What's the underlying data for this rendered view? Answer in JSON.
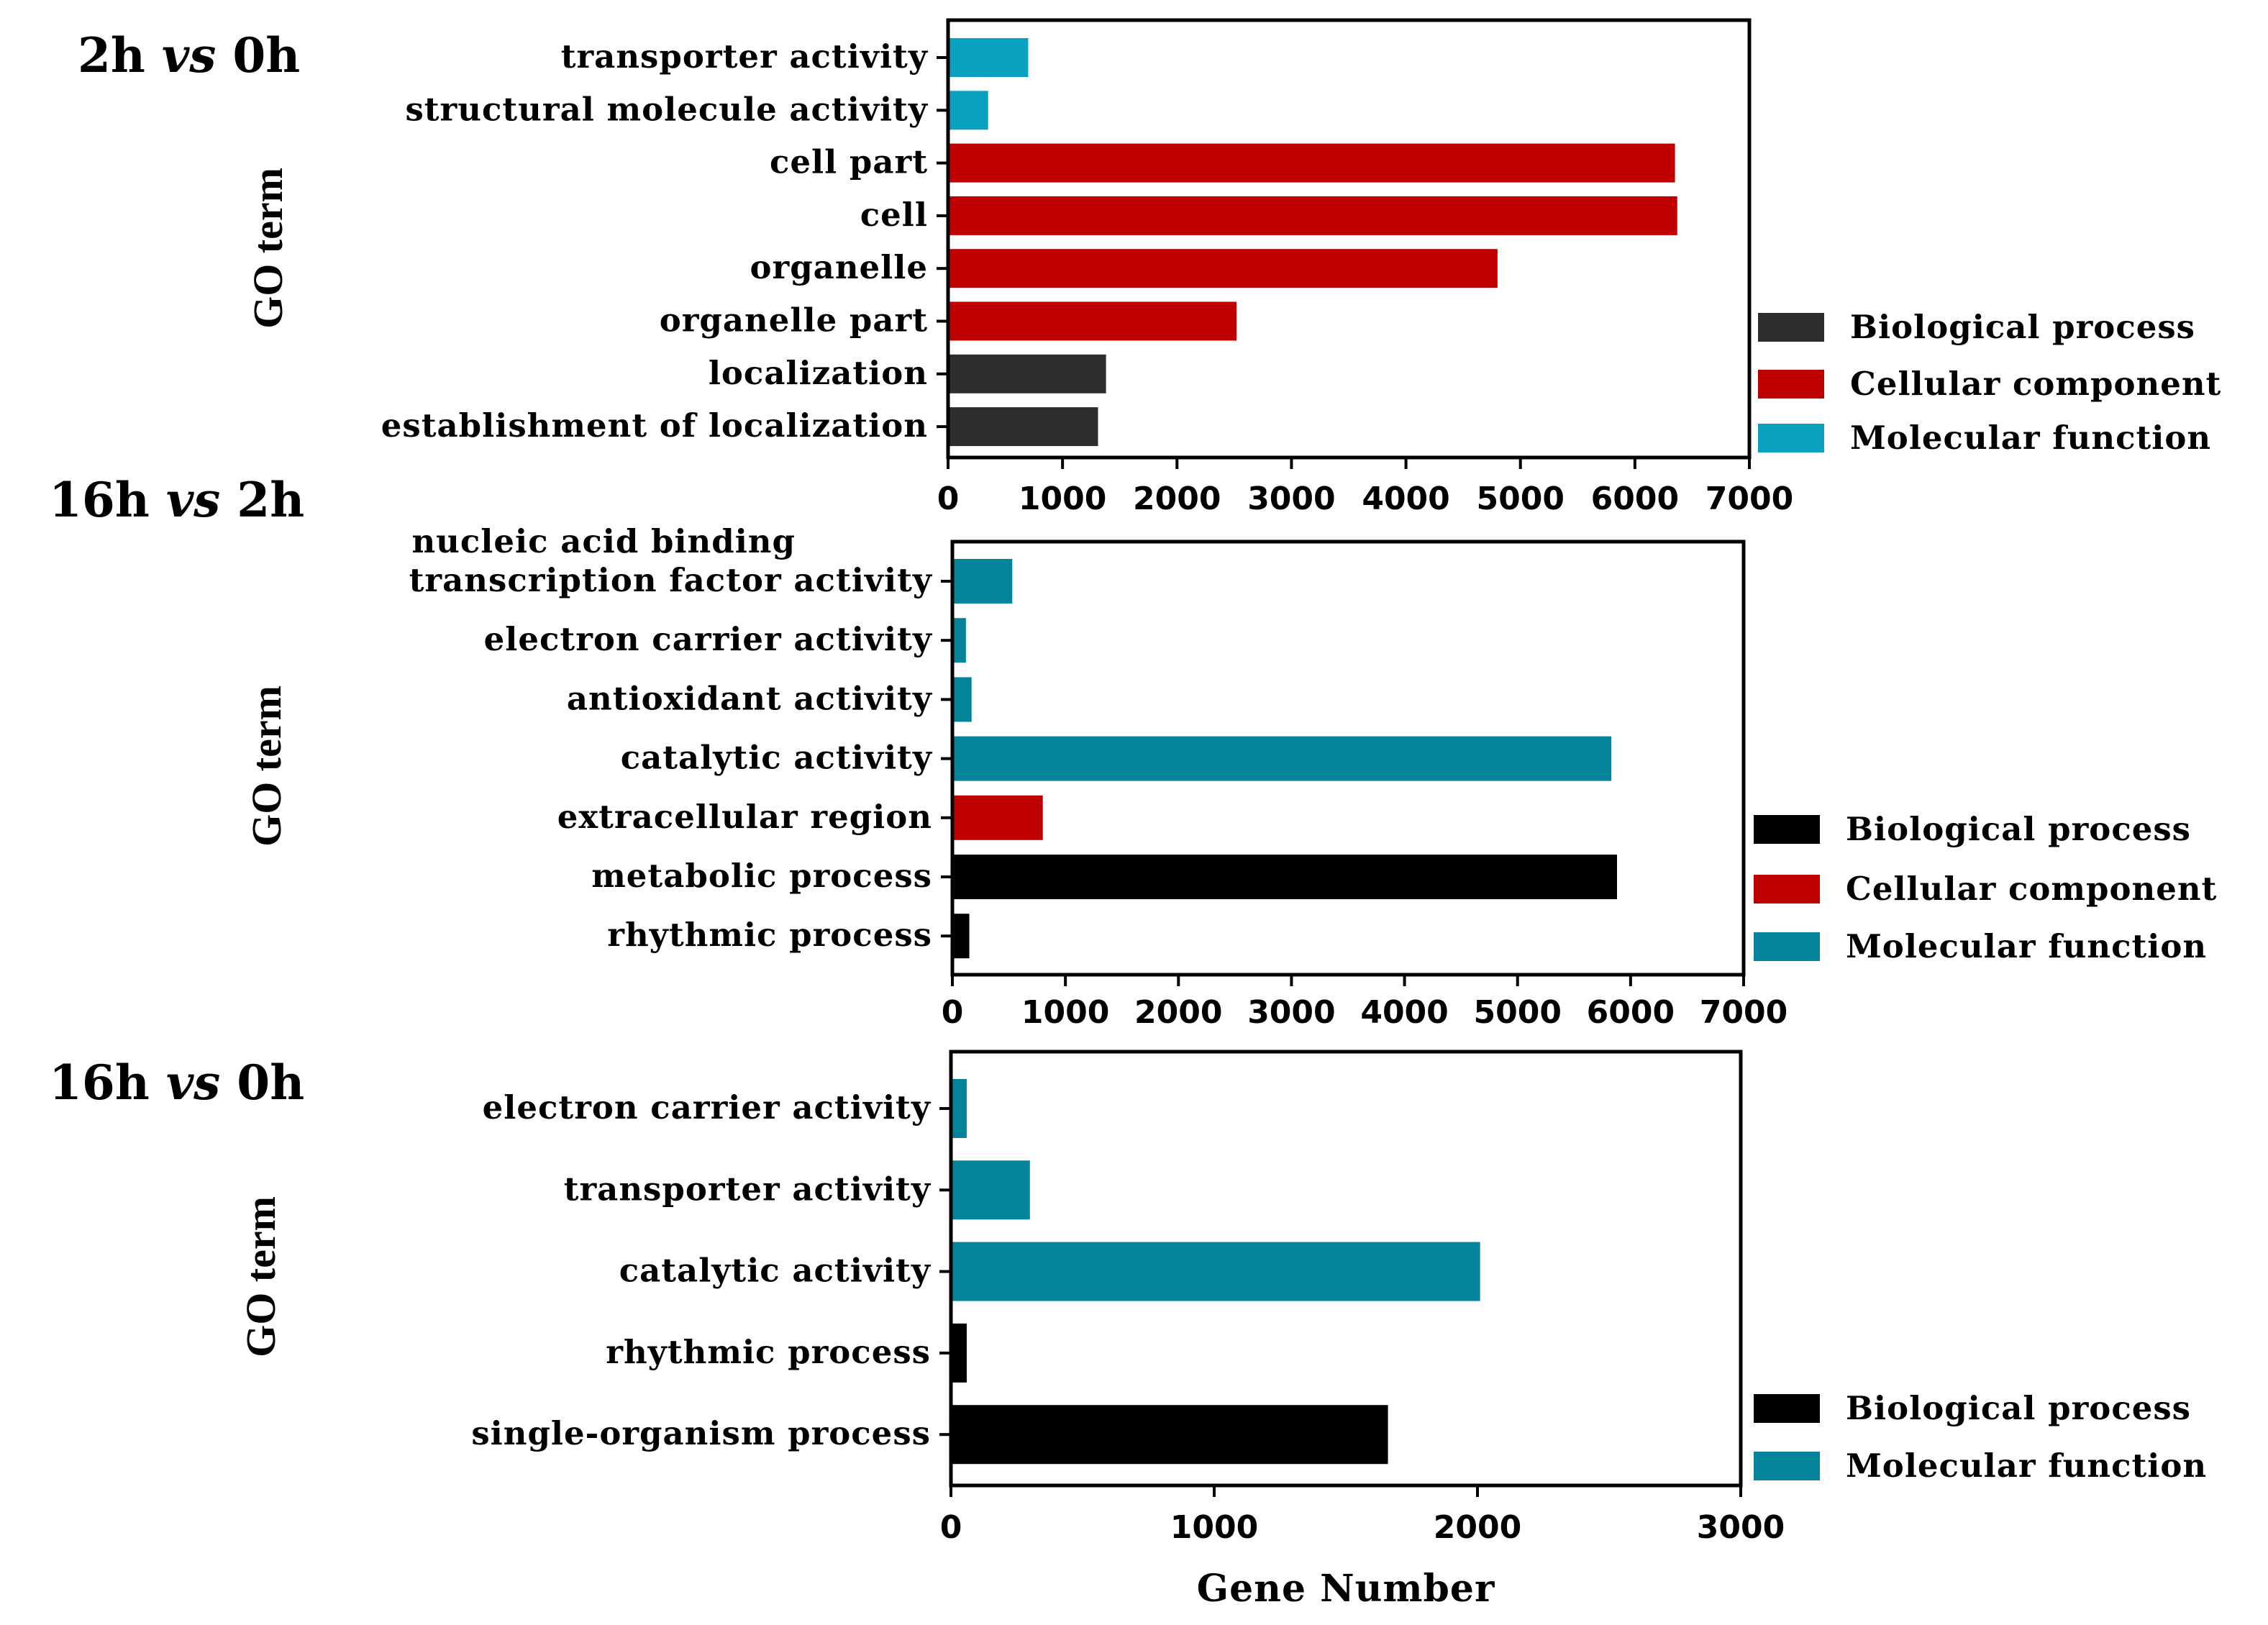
{
  "colors": {
    "Biological process": "#2d2d2d",
    "Cellular component": "#c00000",
    "Molecular function": "#0aa0c0",
    "Molecular function dark": "#04849b",
    "Biological process dark": "#000000"
  },
  "chart_data": [
    {
      "type": "bar",
      "orientation": "horizontal",
      "title": "2h vs 0h",
      "title_parts": [
        "2h ",
        "vs",
        " 0h"
      ],
      "ylabel": "GO term",
      "xlabel": "",
      "xlim": [
        0,
        7000
      ],
      "xticks": [
        0,
        1000,
        2000,
        3000,
        4000,
        5000,
        6000,
        7000
      ],
      "categories": [
        [
          "transporter activity"
        ],
        [
          "structural molecule activity"
        ],
        [
          "cell part"
        ],
        [
          "cell"
        ],
        [
          "organelle"
        ],
        [
          "organelle part"
        ],
        [
          "localization"
        ],
        [
          "establishment of localization"
        ]
      ],
      "values": [
        700,
        350,
        6350,
        6370,
        4800,
        2520,
        1380,
        1310
      ],
      "groups": [
        "Molecular function",
        "Molecular function",
        "Cellular component",
        "Cellular component",
        "Cellular component",
        "Cellular component",
        "Biological process",
        "Biological process"
      ],
      "series_colors": {
        "Biological process": "#2d2d2d",
        "Cellular component": "#c00000",
        "Molecular function": "#0aa0c0"
      },
      "legend": [
        "Biological process",
        "Cellular component",
        "Molecular function"
      ]
    },
    {
      "type": "bar",
      "orientation": "horizontal",
      "title": "16h vs 2h",
      "title_parts": [
        "16h ",
        "vs",
        " 2h"
      ],
      "ylabel": "GO term",
      "xlabel": "",
      "xlim": [
        0,
        7000
      ],
      "xticks": [
        0,
        1000,
        2000,
        3000,
        4000,
        5000,
        6000,
        7000
      ],
      "categories": [
        [
          "nucleic acid binding",
          "transcription factor activity"
        ],
        [
          "electron carrier activity"
        ],
        [
          "antioxidant activity"
        ],
        [
          "catalytic activity"
        ],
        [
          "extracellular region"
        ],
        [
          "metabolic process"
        ],
        [
          "rhythmic process"
        ]
      ],
      "values": [
        530,
        120,
        170,
        5830,
        800,
        5880,
        150
      ],
      "groups": [
        "Molecular function",
        "Molecular function",
        "Molecular function",
        "Molecular function",
        "Cellular component",
        "Biological process",
        "Biological process"
      ],
      "series_colors": {
        "Biological process": "#000000",
        "Cellular component": "#c00000",
        "Molecular function": "#04849b"
      },
      "legend": [
        "Biological process",
        "Cellular component",
        "Molecular function"
      ]
    },
    {
      "type": "bar",
      "orientation": "horizontal",
      "title": "16h vs 0h",
      "title_parts": [
        "16h ",
        "vs",
        " 0h"
      ],
      "ylabel": "GO term",
      "xlabel": "Gene Number",
      "xlim": [
        0,
        3000
      ],
      "xticks": [
        0,
        1000,
        2000,
        3000
      ],
      "categories": [
        [
          "electron carrier activity"
        ],
        [
          "transporter activity"
        ],
        [
          "catalytic activity"
        ],
        [
          "rhythmic process"
        ],
        [
          "single-organism process"
        ]
      ],
      "values": [
        60,
        300,
        2010,
        60,
        1660
      ],
      "groups": [
        "Molecular function",
        "Molecular function",
        "Molecular function",
        "Biological process",
        "Biological process"
      ],
      "series_colors": {
        "Biological process": "#000000",
        "Molecular function": "#04849b"
      },
      "legend": [
        "Biological process",
        "Molecular function"
      ]
    }
  ]
}
